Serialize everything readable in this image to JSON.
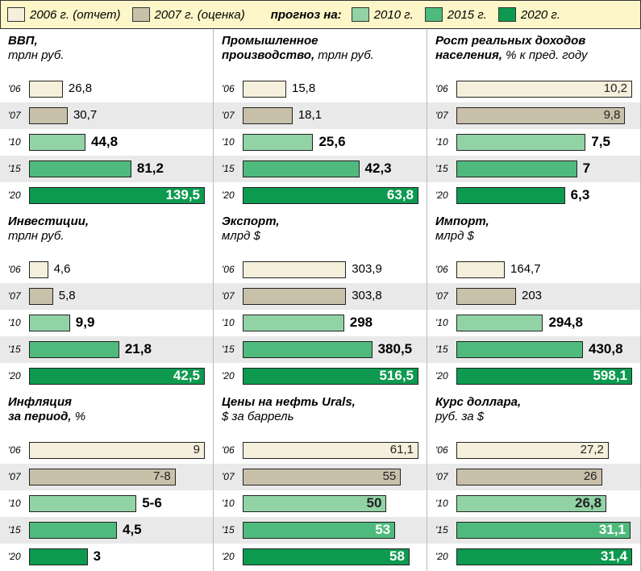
{
  "legend": {
    "items": [
      {
        "label": "2006 г. (отчет)",
        "color": "#f5f0dc"
      },
      {
        "label": "2007 г. (оценка)",
        "color": "#c9c0aa"
      },
      {
        "label": "2010 г.",
        "color": "#92d3a6"
      },
      {
        "label": "2015 г.",
        "color": "#4fba7d"
      },
      {
        "label": "2020 г.",
        "color": "#0d9a4f"
      }
    ],
    "forecast_label": "прогноз на:"
  },
  "chart_data": [
    {
      "type": "bar",
      "title": [
        "ВВП,"
      ],
      "unit": "трлн руб.",
      "categories": [
        "'06",
        "'07",
        "'10",
        "'15",
        "'20"
      ],
      "values": [
        26.8,
        30.7,
        44.8,
        81.2,
        139.5
      ],
      "value_labels": [
        "26,8",
        "30,7",
        "44,8",
        "81,2",
        "139,5"
      ]
    },
    {
      "type": "bar",
      "title": [
        "Промышленное",
        "производство,"
      ],
      "unit": "трлн руб.",
      "categories": [
        "'06",
        "'07",
        "'10",
        "'15",
        "'20"
      ],
      "values": [
        15.8,
        18.1,
        25.6,
        42.3,
        63.8
      ],
      "value_labels": [
        "15,8",
        "18,1",
        "25,6",
        "42,3",
        "63,8"
      ]
    },
    {
      "type": "bar",
      "title": [
        "Рост реальных доходов",
        "населения,"
      ],
      "unit": "% к пред. году",
      "categories": [
        "'06",
        "'07",
        "'10",
        "'15",
        "'20"
      ],
      "values": [
        10.2,
        9.8,
        7.5,
        7,
        6.3
      ],
      "value_labels": [
        "10,2",
        "9,8",
        "7,5",
        "7",
        "6,3"
      ]
    },
    {
      "type": "bar",
      "title": [
        "Инвестиции,"
      ],
      "unit": "трлн руб.",
      "categories": [
        "'06",
        "'07",
        "'10",
        "'15",
        "'20"
      ],
      "values": [
        4.6,
        5.8,
        9.9,
        21.8,
        42.5
      ],
      "value_labels": [
        "4,6",
        "5,8",
        "9,9",
        "21,8",
        "42,5"
      ]
    },
    {
      "type": "bar",
      "title": [
        "Экспорт,"
      ],
      "unit": "млрд $",
      "categories": [
        "'06",
        "'07",
        "'10",
        "'15",
        "'20"
      ],
      "values": [
        303.9,
        303.8,
        298,
        380.5,
        516.5
      ],
      "value_labels": [
        "303,9",
        "303,8",
        "298",
        "380,5",
        "516,5"
      ]
    },
    {
      "type": "bar",
      "title": [
        "Импорт,"
      ],
      "unit": "млрд $",
      "categories": [
        "'06",
        "'07",
        "'10",
        "'15",
        "'20"
      ],
      "values": [
        164.7,
        203,
        294.8,
        430.8,
        598.1
      ],
      "value_labels": [
        "164,7",
        "203",
        "294,8",
        "430,8",
        "598,1"
      ]
    },
    {
      "type": "bar",
      "title": [
        "Инфляция",
        "за период,"
      ],
      "unit": "%",
      "categories": [
        "'06",
        "'07",
        "'10",
        "'15",
        "'20"
      ],
      "values": [
        9,
        7.5,
        5.5,
        4.5,
        3
      ],
      "value_labels": [
        "9",
        "7-8",
        "5-6",
        "4,5",
        "3"
      ]
    },
    {
      "type": "bar",
      "title": [
        "Цены на нефть Urals,"
      ],
      "unit": "$ за баррель",
      "categories": [
        "'06",
        "'07",
        "'10",
        "'15",
        "'20"
      ],
      "values": [
        61.1,
        55,
        50,
        53,
        58
      ],
      "value_labels": [
        "61,1",
        "55",
        "50",
        "53",
        "58"
      ]
    },
    {
      "type": "bar",
      "title": [
        "Курс доллара,"
      ],
      "unit": "руб. за $",
      "categories": [
        "'06",
        "'07",
        "'10",
        "'15",
        "'20"
      ],
      "values": [
        27.2,
        26,
        26.8,
        31.1,
        31.4
      ],
      "value_labels": [
        "27,2",
        "26",
        "26,8",
        "31,1",
        "31,4"
      ]
    }
  ]
}
